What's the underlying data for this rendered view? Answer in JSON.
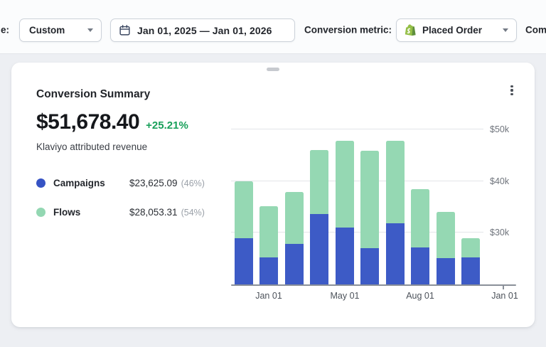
{
  "toolbar": {
    "left_label_fragment": "e:",
    "preset_dropdown": {
      "value": "Custom"
    },
    "date_range": {
      "value": "Jan 01, 2025 — Jan 01, 2026"
    },
    "metric_label": "Conversion metric:",
    "metric_dropdown": {
      "value": "Placed Order",
      "icon": "shopify-icon"
    },
    "right_label_fragment": "Com"
  },
  "card": {
    "title": "Conversion Summary",
    "total_revenue": "$51,678.40",
    "delta": "+25.21%",
    "subtitle": "Klaviyo attributed revenue",
    "legend": [
      {
        "label": "Campaigns",
        "value": "$23,625.09",
        "percent": "(46%)",
        "color": "#3653c4"
      },
      {
        "label": "Flows",
        "value": "$28,053.31",
        "percent": "(54%)",
        "color": "#93d7b2"
      }
    ]
  },
  "chart_data": {
    "type": "bar",
    "stacked": true,
    "unit": "USD",
    "series": [
      {
        "name": "Campaigns",
        "color": "#3d5bc6",
        "values": [
          28900,
          25200,
          27800,
          33700,
          31000,
          27000,
          31800,
          27100,
          25100,
          25300
        ]
      },
      {
        "name": "Flows",
        "color": "#95d8b3",
        "values": [
          11100,
          10000,
          10100,
          12300,
          16800,
          18900,
          16000,
          11300,
          8900,
          3600
        ]
      }
    ],
    "y_axis": {
      "side": "right",
      "baseline": 20000,
      "max": 51000,
      "ticks": [
        {
          "value": 30000,
          "label": "$30k"
        },
        {
          "value": 40000,
          "label": "$40k"
        },
        {
          "value": 50000,
          "label": "$50k"
        }
      ]
    },
    "x_ticks": [
      {
        "bar_index": 1,
        "label": "Jan 01"
      },
      {
        "bar_index": 4,
        "label": "May 01"
      },
      {
        "bar_index": 7,
        "label": "Aug 01"
      },
      {
        "bar_index": "end",
        "label": "Jan 01"
      }
    ],
    "gridlines": true,
    "legend_position": "left"
  },
  "colors": {
    "delta_green": "#18a05a",
    "page_bg": "#edeff3",
    "shopify_green": "#95BF47"
  }
}
